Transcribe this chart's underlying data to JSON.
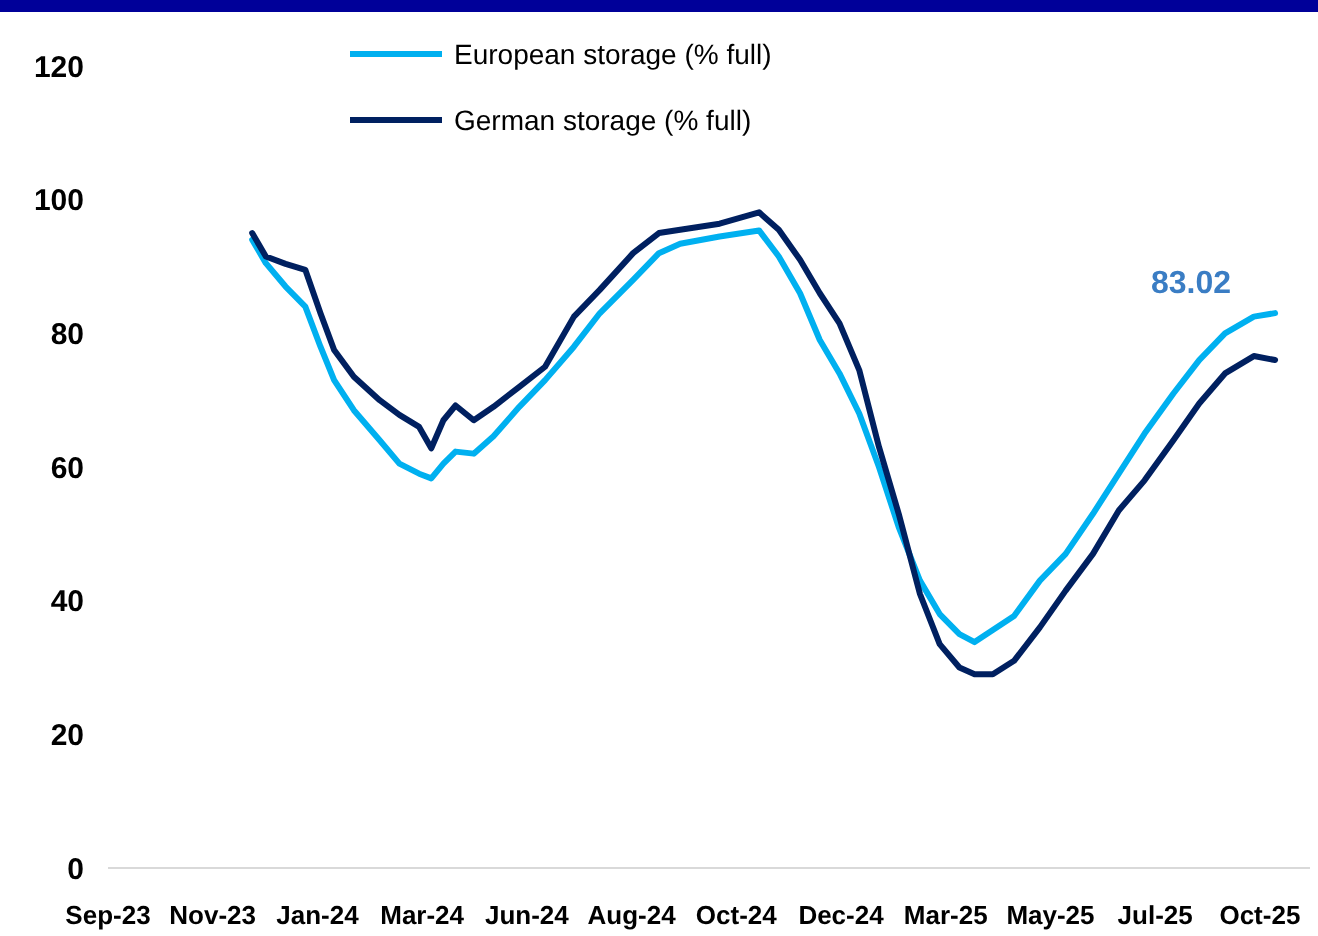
{
  "chart_data": {
    "type": "line",
    "x": [
      "2023-12-09",
      "2023-12-18",
      "2023-12-31",
      "2024-01-13",
      "2024-01-23",
      "2024-02-01",
      "2024-02-14",
      "2024-03-02",
      "2024-03-15",
      "2024-03-28",
      "2024-04-05",
      "2024-04-13",
      "2024-04-21",
      "2024-05-03",
      "2024-05-16",
      "2024-06-02",
      "2024-06-19",
      "2024-07-08",
      "2024-07-25",
      "2024-08-16",
      "2024-09-02",
      "2024-09-16",
      "2024-10-12",
      "2024-11-07",
      "2024-11-20",
      "2024-12-04",
      "2024-12-17",
      "2024-12-30",
      "2025-01-12",
      "2025-01-25",
      "2025-02-07",
      "2025-02-21",
      "2025-03-06",
      "2025-03-19",
      "2025-03-29",
      "2025-04-10",
      "2025-04-24",
      "2025-05-11",
      "2025-05-28",
      "2025-06-15",
      "2025-07-02",
      "2025-07-19",
      "2025-08-07",
      "2025-08-24",
      "2025-09-10",
      "2025-09-29",
      "2025-10-13"
    ],
    "series": [
      {
        "name": "European storage (% full)",
        "color": "#00b0f0",
        "values": [
          94,
          90.5,
          87,
          84,
          78,
          73,
          68.5,
          64,
          60.5,
          59,
          58.3,
          60.5,
          62.3,
          62,
          64.6,
          69,
          73,
          78,
          83,
          88,
          92,
          93.4,
          94.5,
          95.4,
          91.5,
          86,
          79,
          74,
          68,
          60,
          51,
          43,
          38,
          35,
          33.8,
          35.6,
          37.7,
          43,
          47,
          53,
          59,
          65,
          71,
          76,
          80,
          82.5,
          83.02
        ]
      },
      {
        "name": "German storage (% full)",
        "color": "#002060",
        "values": [
          95,
          91.5,
          90.4,
          89.5,
          83,
          77.5,
          73.5,
          70,
          67.8,
          66,
          62.8,
          67,
          69.2,
          67,
          69,
          72,
          75,
          82.5,
          86.5,
          92,
          95,
          95.5,
          96.4,
          98.1,
          95.5,
          91,
          86,
          81.5,
          74.5,
          63,
          53,
          41,
          33.5,
          30,
          29,
          29,
          31,
          36,
          41.5,
          47,
          53.5,
          58,
          64,
          69.5,
          74,
          76.6,
          76
        ]
      }
    ],
    "xlim": [
      "2023-09-05",
      "2025-11-05"
    ],
    "xticks": [
      {
        "value": "2023-09-05",
        "label": "Sep-23"
      },
      {
        "value": "2023-11-13",
        "label": "Nov-23"
      },
      {
        "value": "2024-01-21",
        "label": "Jan-24"
      },
      {
        "value": "2024-03-30",
        "label": "Mar-24"
      },
      {
        "value": "2024-06-07",
        "label": "Jun-24"
      },
      {
        "value": "2024-08-15",
        "label": "Aug-24"
      },
      {
        "value": "2024-10-23",
        "label": "Oct-24"
      },
      {
        "value": "2024-12-31",
        "label": "Dec-24"
      },
      {
        "value": "2025-03-10",
        "label": "Mar-25"
      },
      {
        "value": "2025-05-18",
        "label": "May-25"
      },
      {
        "value": "2025-07-26",
        "label": "Jul-25"
      },
      {
        "value": "2025-10-03",
        "label": "Oct-25"
      }
    ],
    "ylim": [
      0,
      120
    ],
    "yticks": [
      0,
      20,
      40,
      60,
      80,
      100,
      120
    ],
    "grid": false,
    "legend": "top",
    "marker": "none",
    "line_style": "solid",
    "annotations": [
      {
        "text": "83.02",
        "x": "2025-10-13",
        "y": 83.02
      }
    ]
  }
}
